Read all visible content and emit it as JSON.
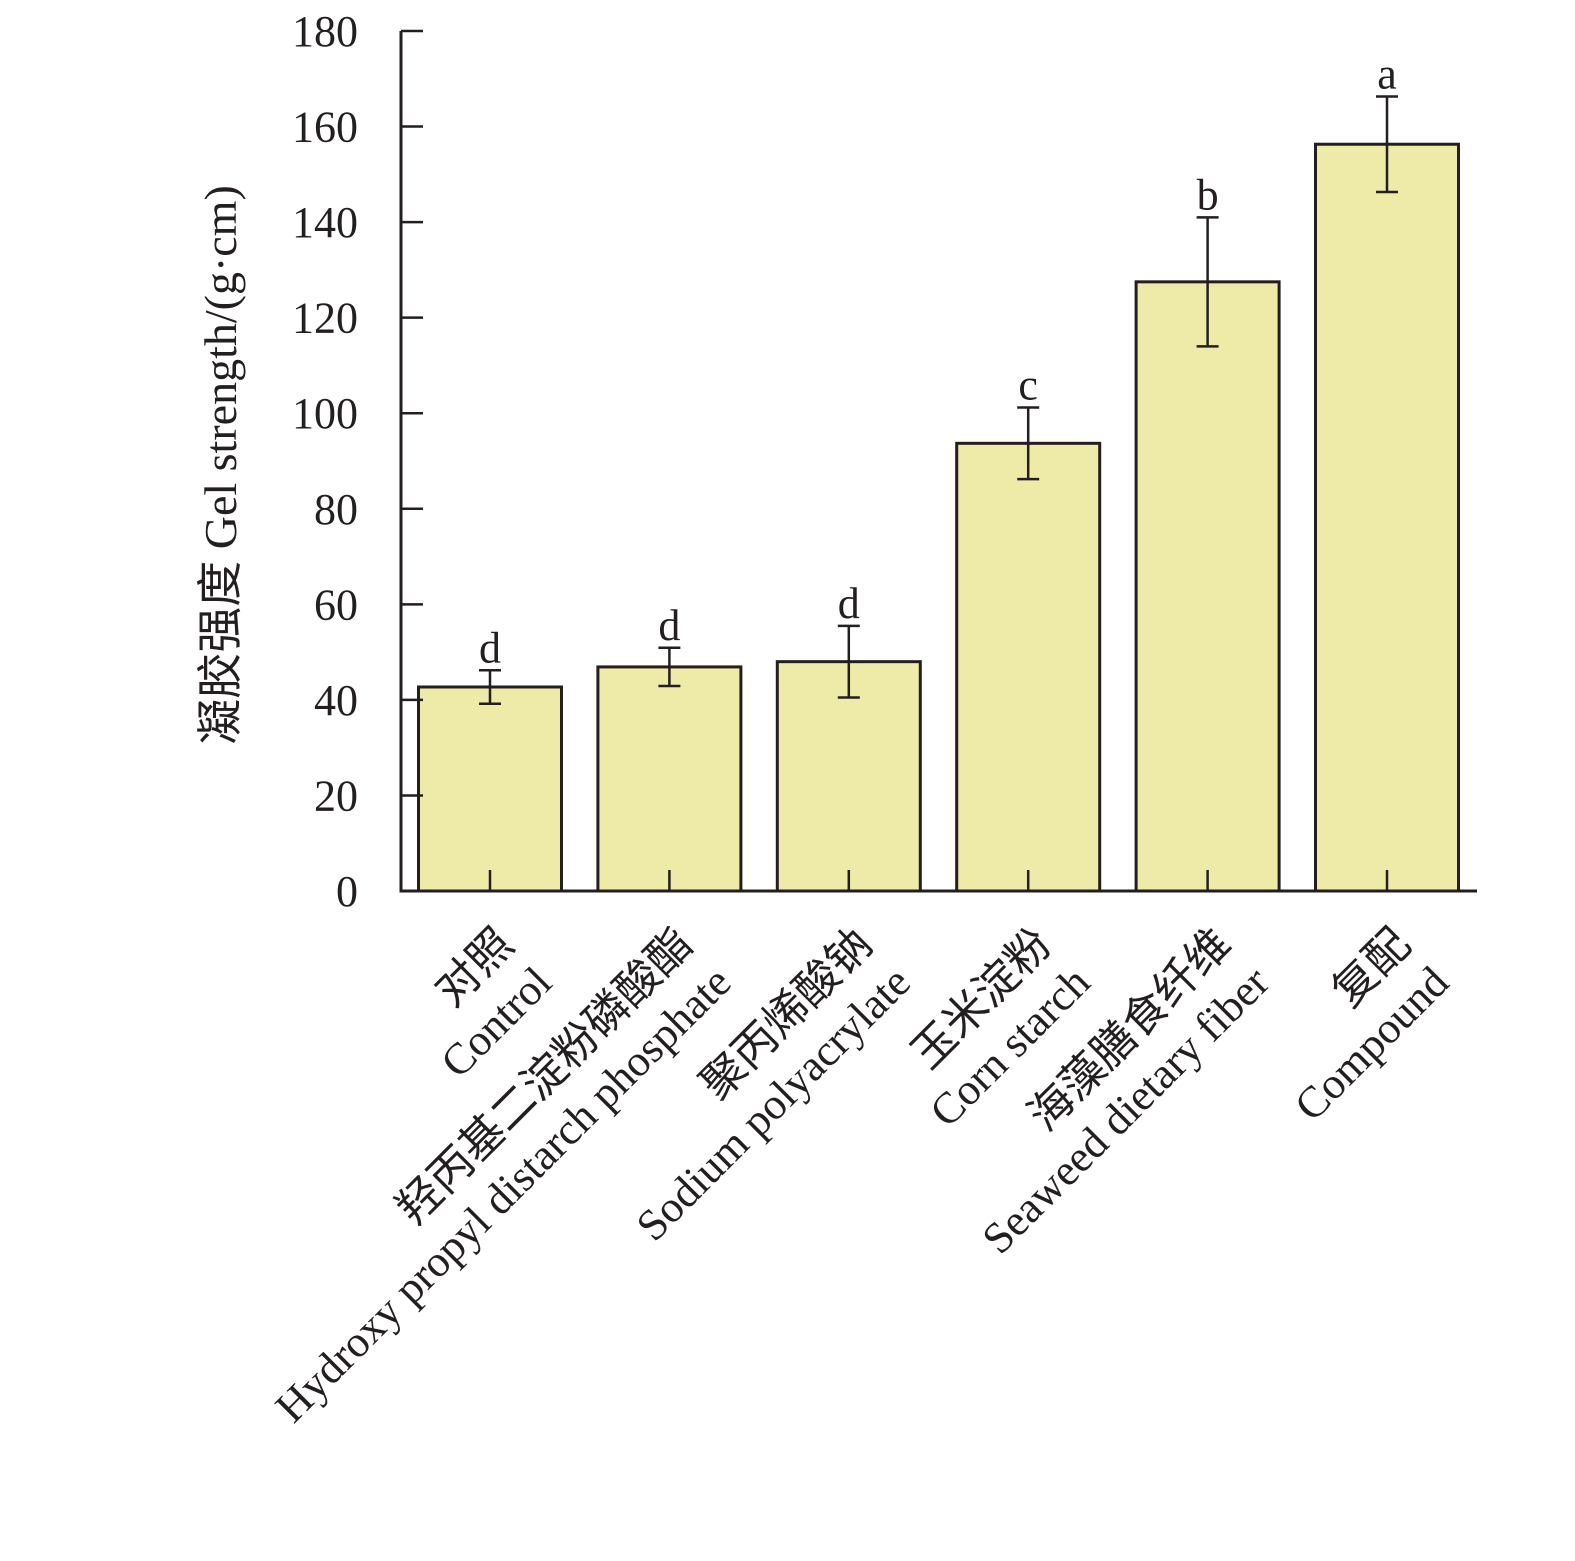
{
  "chart_data": {
    "type": "bar",
    "ylabel": "凝胶强度 Gel strength/(g·cm)",
    "xlabel": "",
    "ylim": [
      0,
      180
    ],
    "yticks": [
      0,
      20,
      40,
      60,
      80,
      100,
      120,
      140,
      160,
      180
    ],
    "categories": [
      {
        "cn": "对照",
        "en": "Control"
      },
      {
        "cn": "羟丙基二淀粉磷酸酯",
        "en": "Hydroxy propyl distarch phosphate"
      },
      {
        "cn": "聚丙烯酸钠",
        "en": "Sodium polyacrylate"
      },
      {
        "cn": "玉米淀粉",
        "en": "Corn starch"
      },
      {
        "cn": "海藻膳食纤维",
        "en": "Seaweed dietary fiber"
      },
      {
        "cn": "复配",
        "en": "Compound"
      }
    ],
    "values": [
      42.7,
      46.9,
      48.0,
      93.7,
      127.5,
      156.3
    ],
    "error": [
      3.5,
      4.0,
      7.5,
      7.5,
      13.5,
      10.0
    ],
    "significance": [
      "d",
      "d",
      "d",
      "c",
      "b",
      "a"
    ],
    "grid": false,
    "legend": "none",
    "bar_color": "#eeeaa8",
    "edge_color": "#231f20"
  }
}
